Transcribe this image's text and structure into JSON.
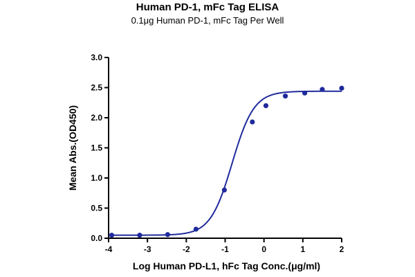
{
  "chart_data": {
    "type": "scatter",
    "title": "Human PD-1, mFc Tag ELISA",
    "subtitle": "0.1μg Human PD-1, mFc Tag Per Well",
    "xlabel": "Log Human PD-L1, hFc Tag Conc.(μg/ml)",
    "ylabel": "Mean Abs.(OD450)",
    "xlim": [
      -4,
      2
    ],
    "ylim": [
      0,
      3
    ],
    "x_ticks": [
      -4,
      -3,
      -2,
      -1,
      0,
      1,
      2
    ],
    "y_ticks": [
      "0.0",
      "0.5",
      "1.0",
      "1.5",
      "2.0",
      "2.5",
      "3.0"
    ],
    "grid": false,
    "colors": {
      "series": "#1f2a9c",
      "axis": "#000000"
    },
    "series": [
      {
        "x": [
          -3.92,
          -3.2,
          -2.48,
          -1.75,
          -1.02,
          -0.3,
          0.05,
          0.55,
          1.05,
          1.5,
          2.0
        ],
        "values": [
          0.05,
          0.05,
          0.06,
          0.15,
          0.8,
          1.93,
          2.2,
          2.36,
          2.41,
          2.47,
          2.49
        ]
      }
    ],
    "fit_curve": {
      "model": "4PL",
      "bottom": 0.05,
      "top": 2.44,
      "log_ec50": -0.82,
      "hill_slope": 1.55
    }
  }
}
